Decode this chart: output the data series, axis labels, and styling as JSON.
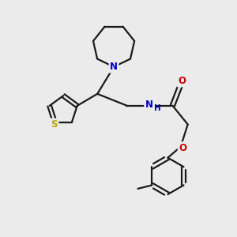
{
  "bg_color": "#ebebeb",
  "bond_color": "#1a1a1a",
  "bond_width": 1.6,
  "atom_colors": {
    "N": "#0000cc",
    "O": "#cc0000",
    "S": "#bbaa00",
    "H": "#0000cc"
  },
  "font_size": 8.5,
  "figsize": [
    3.0,
    3.0
  ],
  "dpi": 100,
  "xlim": [
    0,
    10
  ],
  "ylim": [
    0,
    10
  ]
}
